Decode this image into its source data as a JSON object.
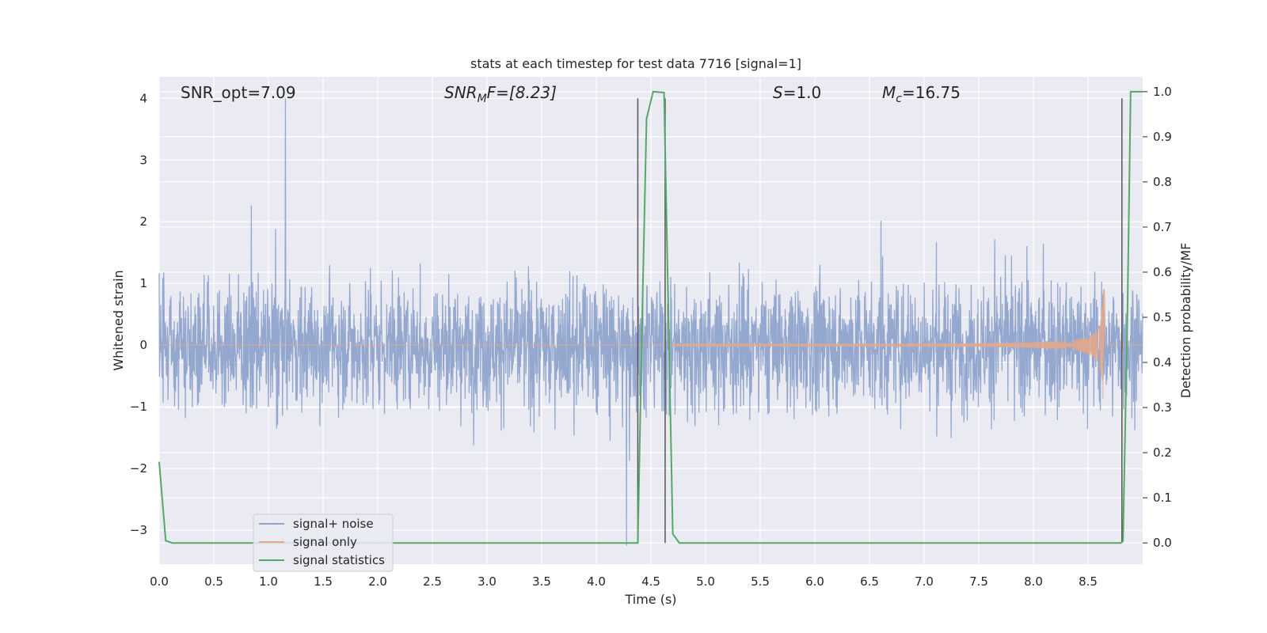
{
  "chart_data": {
    "type": "line",
    "title": "stats at each timestep for test data 7716 [signal=1]",
    "xlabel": "Time (s)",
    "ylabel": "Whitened strain",
    "ylabel_right": "Detection probability/MF",
    "xlim": [
      0.0,
      9.0
    ],
    "ylim": [
      -3.55,
      4.35
    ],
    "ylim_right": [
      -0.047,
      1.033
    ],
    "x_ticks": [
      "0.0",
      "0.5",
      "1.0",
      "1.5",
      "2.0",
      "2.5",
      "3.0",
      "3.5",
      "4.0",
      "4.5",
      "5.0",
      "5.5",
      "6.0",
      "6.5",
      "7.0",
      "7.5",
      "8.0",
      "8.5"
    ],
    "y_ticks": [
      "4",
      "3",
      "2",
      "1",
      "0",
      "−1",
      "−2",
      "−3"
    ],
    "y_right_ticks": [
      "1.0",
      "0.9",
      "0.8",
      "0.7",
      "0.6",
      "0.5",
      "0.4",
      "0.3",
      "0.2",
      "0.1",
      "0.0"
    ],
    "grid": true,
    "legend_position": "lower-left",
    "annotations": {
      "snr_opt": "SNR_opt=7.09",
      "snr_mf_prefix": "SNR",
      "snr_mf_sub": "M",
      "snr_mf_suffix": "F=[8.23]",
      "s_prefix": "S",
      "s_suffix": "=1.0",
      "mc_prefix": "M",
      "mc_sub": "c",
      "mc_suffix": "=16.75"
    },
    "series": [
      {
        "name": "signal+ noise",
        "color": "#8fa4cc",
        "kind": "noise",
        "description_values": {
          "typical_amplitude": 1.0,
          "peak_max": 4.0,
          "peak_min": -3.25
        }
      },
      {
        "name": "signal only",
        "color": "#e3a789",
        "kind": "chirp",
        "visible_from": 4.7,
        "merger_time": 8.65,
        "peak_amplitude": 1.1
      },
      {
        "name": "signal statistics",
        "color": "#55a868",
        "axis": "right",
        "points": [
          [
            0.0,
            0.18
          ],
          [
            0.06,
            0.005
          ],
          [
            0.12,
            0.0
          ],
          [
            4.38,
            0.0
          ],
          [
            4.42,
            0.5
          ],
          [
            4.46,
            0.94
          ],
          [
            4.52,
            1.0
          ],
          [
            4.62,
            0.998
          ],
          [
            4.7,
            0.02
          ],
          [
            4.76,
            0.0
          ],
          [
            8.8,
            0.0
          ],
          [
            8.82,
            0.004
          ],
          [
            8.86,
            0.5
          ],
          [
            8.89,
            1.0
          ],
          [
            9.0,
            1.0
          ]
        ]
      }
    ],
    "vertical_markers": [
      4.38,
      4.63,
      8.81
    ],
    "marker_color": "#555555"
  }
}
